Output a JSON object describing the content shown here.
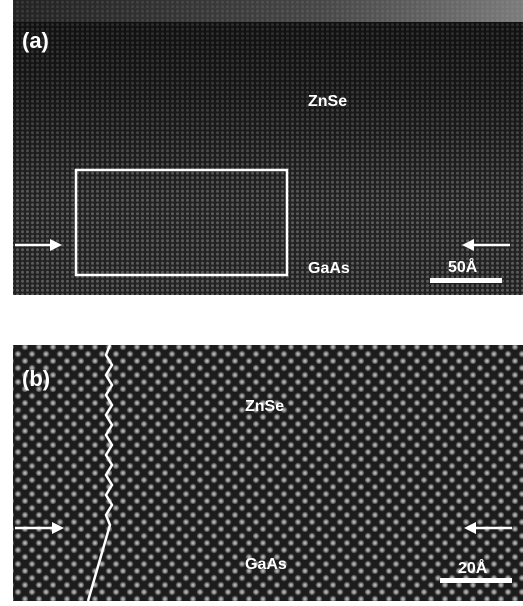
{
  "panels": [
    {
      "label": "(a)",
      "top_layer": "ZnSe",
      "bottom_layer": "GaAs",
      "scale_bar": "50Å"
    },
    {
      "label": "(b)",
      "top_layer": "ZnSe",
      "bottom_layer": "GaAs",
      "scale_bar": "20Å"
    }
  ]
}
